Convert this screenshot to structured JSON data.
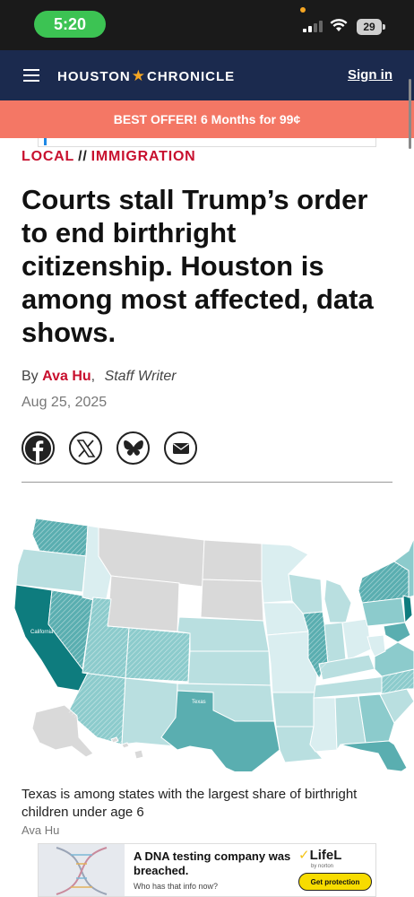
{
  "status_bar": {
    "time": "5:20",
    "battery": "29"
  },
  "header": {
    "logo_left": "HOUSTON",
    "logo_right": "CHRONICLE",
    "sign_in": "Sign in"
  },
  "offer": {
    "text": "BEST OFFER! 6 Months for 99¢"
  },
  "article": {
    "section": "LOCAL",
    "separator": "//",
    "subsection": "IMMIGRATION",
    "headline": "Courts stall Trump’s order to end birthright citizenship. Houston is among most affected, data shows.",
    "byline_prefix": "By",
    "author": "Ava Hu",
    "comma": ",",
    "author_role": "Staff Writer",
    "date": "Aug 25, 2025"
  },
  "social": [
    {
      "icon": "facebook-icon"
    },
    {
      "icon": "x-icon"
    },
    {
      "icon": "bluesky-icon"
    },
    {
      "icon": "email-icon"
    }
  ],
  "map": {
    "labels": {
      "california": "California",
      "texas": "Texas"
    },
    "colors": {
      "lightest": "#daeef0",
      "light": "#b9dfe0",
      "mid": "#8ccbcc",
      "strong": "#5aaeb0",
      "darkest": "#0e7c7e",
      "no_data": "#d9d9d9"
    }
  },
  "caption": {
    "text": "Texas is among states with the largest share of birthright children under age 6",
    "credit": "Ava Hu"
  },
  "ad": {
    "title": "A DNA testing company was breached.",
    "subtitle": "Who has that info now?",
    "brand": "LifeL",
    "brand_sub": "by norton",
    "cta": "Get protection"
  }
}
